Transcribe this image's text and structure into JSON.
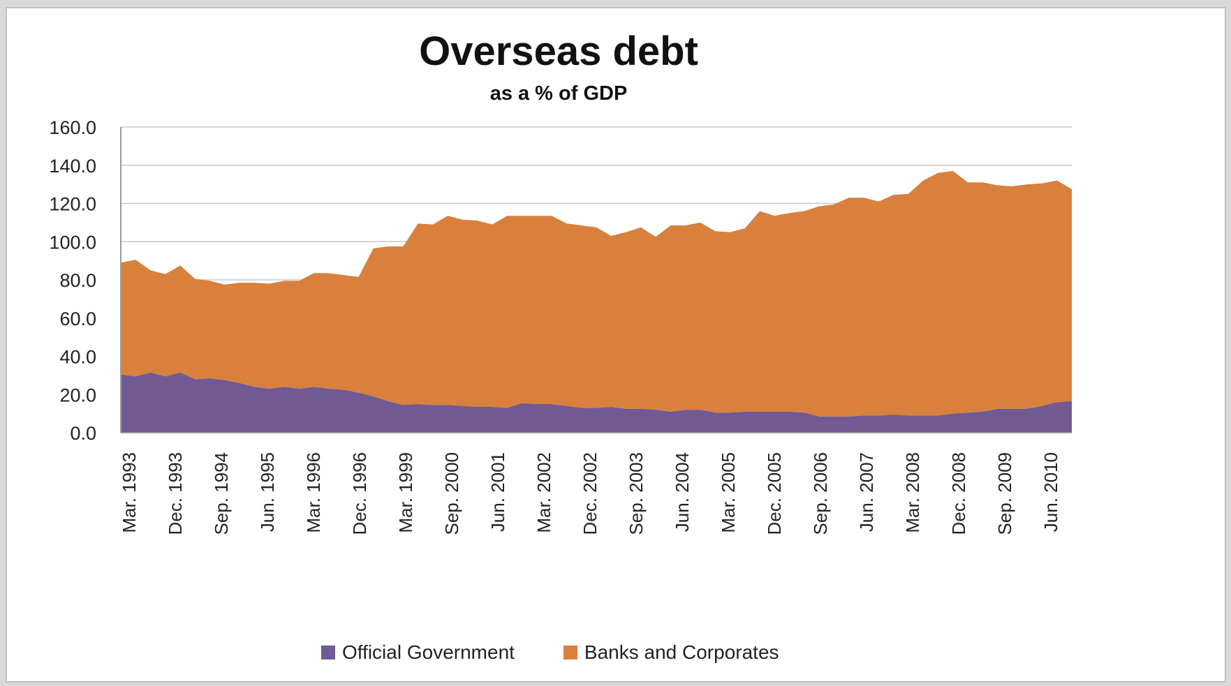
{
  "chart_data": {
    "type": "area",
    "stacked": true,
    "title": "Overseas debt",
    "subtitle": "as a % of GDP",
    "xlabel": "",
    "ylabel": "",
    "ylim": [
      0,
      160
    ],
    "yticks": [
      "160.0",
      "140.0",
      "120.0",
      "100.0",
      "80.0",
      "60.0",
      "40.0",
      "20.0",
      "0.0"
    ],
    "grid": true,
    "legend_position": "bottom",
    "x_tick_labels": [
      "Mar. 1993",
      "Dec. 1993",
      "Sep. 1994",
      "Jun. 1995",
      "Mar. 1996",
      "Dec. 1996",
      "Mar. 1999",
      "Sep. 2000",
      "Jun. 2001",
      "Mar. 2002",
      "Dec. 2002",
      "Sep. 2003",
      "Jun. 2004",
      "Mar. 2005",
      "Dec. 2005",
      "Sep. 2006",
      "Jun. 2007",
      "Mar. 2008",
      "Dec. 2008",
      "Sep. 2009",
      "Jun. 2010"
    ],
    "series": [
      {
        "name": "Official Government",
        "color": "#715a93",
        "values": [
          30.5,
          29.5,
          31.5,
          29.5,
          31.5,
          28.0,
          28.5,
          27.5,
          26.0,
          24.0,
          23.0,
          24.0,
          23.0,
          24.0,
          23.0,
          22.5,
          21.0,
          19.0,
          16.5,
          14.5,
          15.0,
          14.5,
          14.5,
          14.0,
          13.5,
          13.5,
          13.0,
          15.5,
          15.0,
          15.0,
          14.0,
          13.0,
          13.0,
          13.5,
          12.5,
          12.5,
          12.0,
          11.0,
          12.0,
          12.0,
          10.5,
          10.5,
          11.0,
          11.0,
          11.0,
          11.0,
          10.5,
          8.5,
          8.5,
          8.5,
          9.0,
          9.0,
          9.5,
          9.0,
          9.0,
          9.0,
          10.0,
          10.5,
          11.0,
          12.5,
          12.5,
          12.5,
          14.0,
          16.0,
          16.5
        ]
      },
      {
        "name": "Banks and Corporates",
        "color": "#d9803d",
        "values": [
          58.5,
          61.0,
          53.5,
          53.5,
          56.0,
          52.5,
          51.0,
          50.0,
          52.5,
          54.5,
          55.0,
          55.5,
          56.5,
          59.5,
          60.5,
          60.0,
          60.5,
          77.5,
          81.0,
          83.0,
          94.5,
          94.5,
          99.0,
          97.5,
          97.5,
          95.5,
          100.5,
          98.0,
          98.5,
          98.5,
          95.5,
          95.5,
          94.5,
          89.5,
          92.5,
          95.0,
          90.5,
          97.5,
          96.5,
          98.0,
          95.0,
          94.5,
          96.0,
          105.0,
          102.5,
          104.0,
          105.5,
          110.0,
          111.0,
          114.5,
          114.0,
          112.0,
          115.0,
          116.0,
          123.0,
          127.0,
          127.0,
          120.5,
          120.0,
          117.0,
          116.5,
          117.5,
          116.5,
          116.0,
          111.0
        ]
      }
    ]
  }
}
